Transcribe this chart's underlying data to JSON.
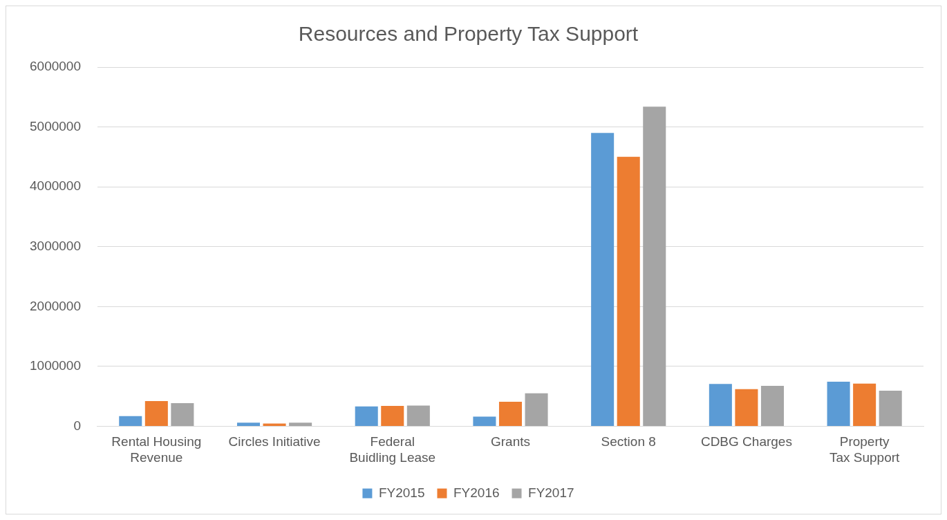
{
  "chart_data": {
    "type": "bar",
    "title": "Resources and Property Tax Support",
    "categories": [
      "Rental Housing Revenue",
      "Circles Initiative",
      "Federal Buidling Lease",
      "Grants",
      "Section 8",
      "CDBG Charges",
      "Property Tax Support"
    ],
    "series": [
      {
        "name": "FY2015",
        "color": "#5b9bd5",
        "values": [
          170000,
          60000,
          330000,
          160000,
          4900000,
          705000,
          745000
        ]
      },
      {
        "name": "FY2016",
        "color": "#ed7d31",
        "values": [
          420000,
          45000,
          340000,
          410000,
          4500000,
          620000,
          713000
        ]
      },
      {
        "name": "FY2017",
        "color": "#a5a5a5",
        "values": [
          385000,
          60000,
          345000,
          550000,
          5340000,
          675000,
          595000
        ]
      }
    ],
    "ylim": [
      0,
      6000000
    ],
    "yticks": [
      0,
      1000000,
      2000000,
      3000000,
      4000000,
      5000000,
      6000000
    ],
    "grid": "y",
    "legend": "bottom"
  }
}
